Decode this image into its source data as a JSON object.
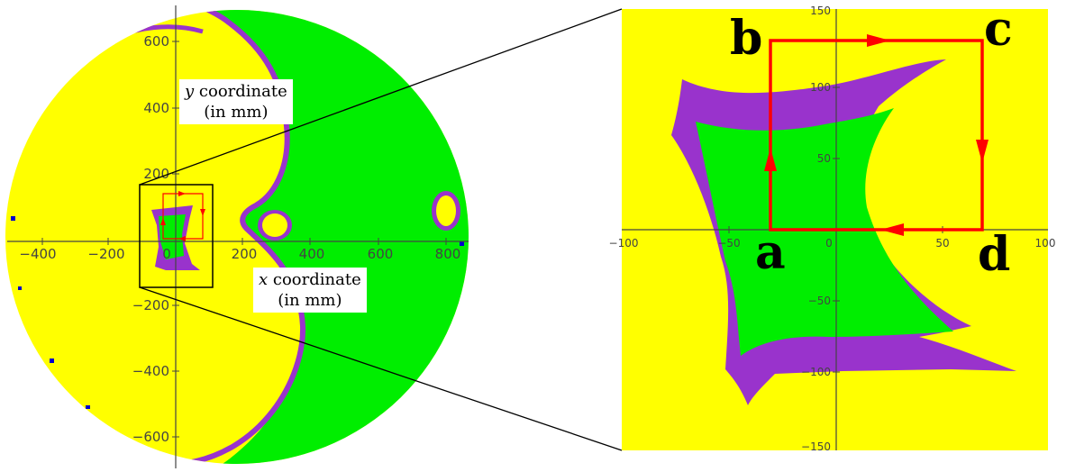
{
  "colors": {
    "yellow": "#ffff00",
    "green": "#00ee00",
    "purple": "#9933cc",
    "blue": "#0000cc",
    "red": "#ff0000",
    "axis": "#444444"
  },
  "left_plot": {
    "x_ticks": [
      "−400",
      "−200",
      "0",
      "200",
      "400",
      "600",
      "800"
    ],
    "y_ticks": [
      "600",
      "400",
      "200",
      "−200",
      "−400",
      "−600"
    ],
    "y_label": {
      "var": "y",
      "word": "coordinate",
      "unit": "(in mm)"
    },
    "x_label": {
      "var": "x",
      "word": "coordinate",
      "unit": "(in mm)"
    }
  },
  "right_plot": {
    "x_ticks": [
      "−100",
      "−50",
      "0",
      "50",
      "100"
    ],
    "y_ticks": [
      "150",
      "100",
      "50",
      "−50",
      "−100",
      "−150"
    ],
    "corners": {
      "a": "a",
      "b": "b",
      "c": "c",
      "d": "d"
    }
  }
}
